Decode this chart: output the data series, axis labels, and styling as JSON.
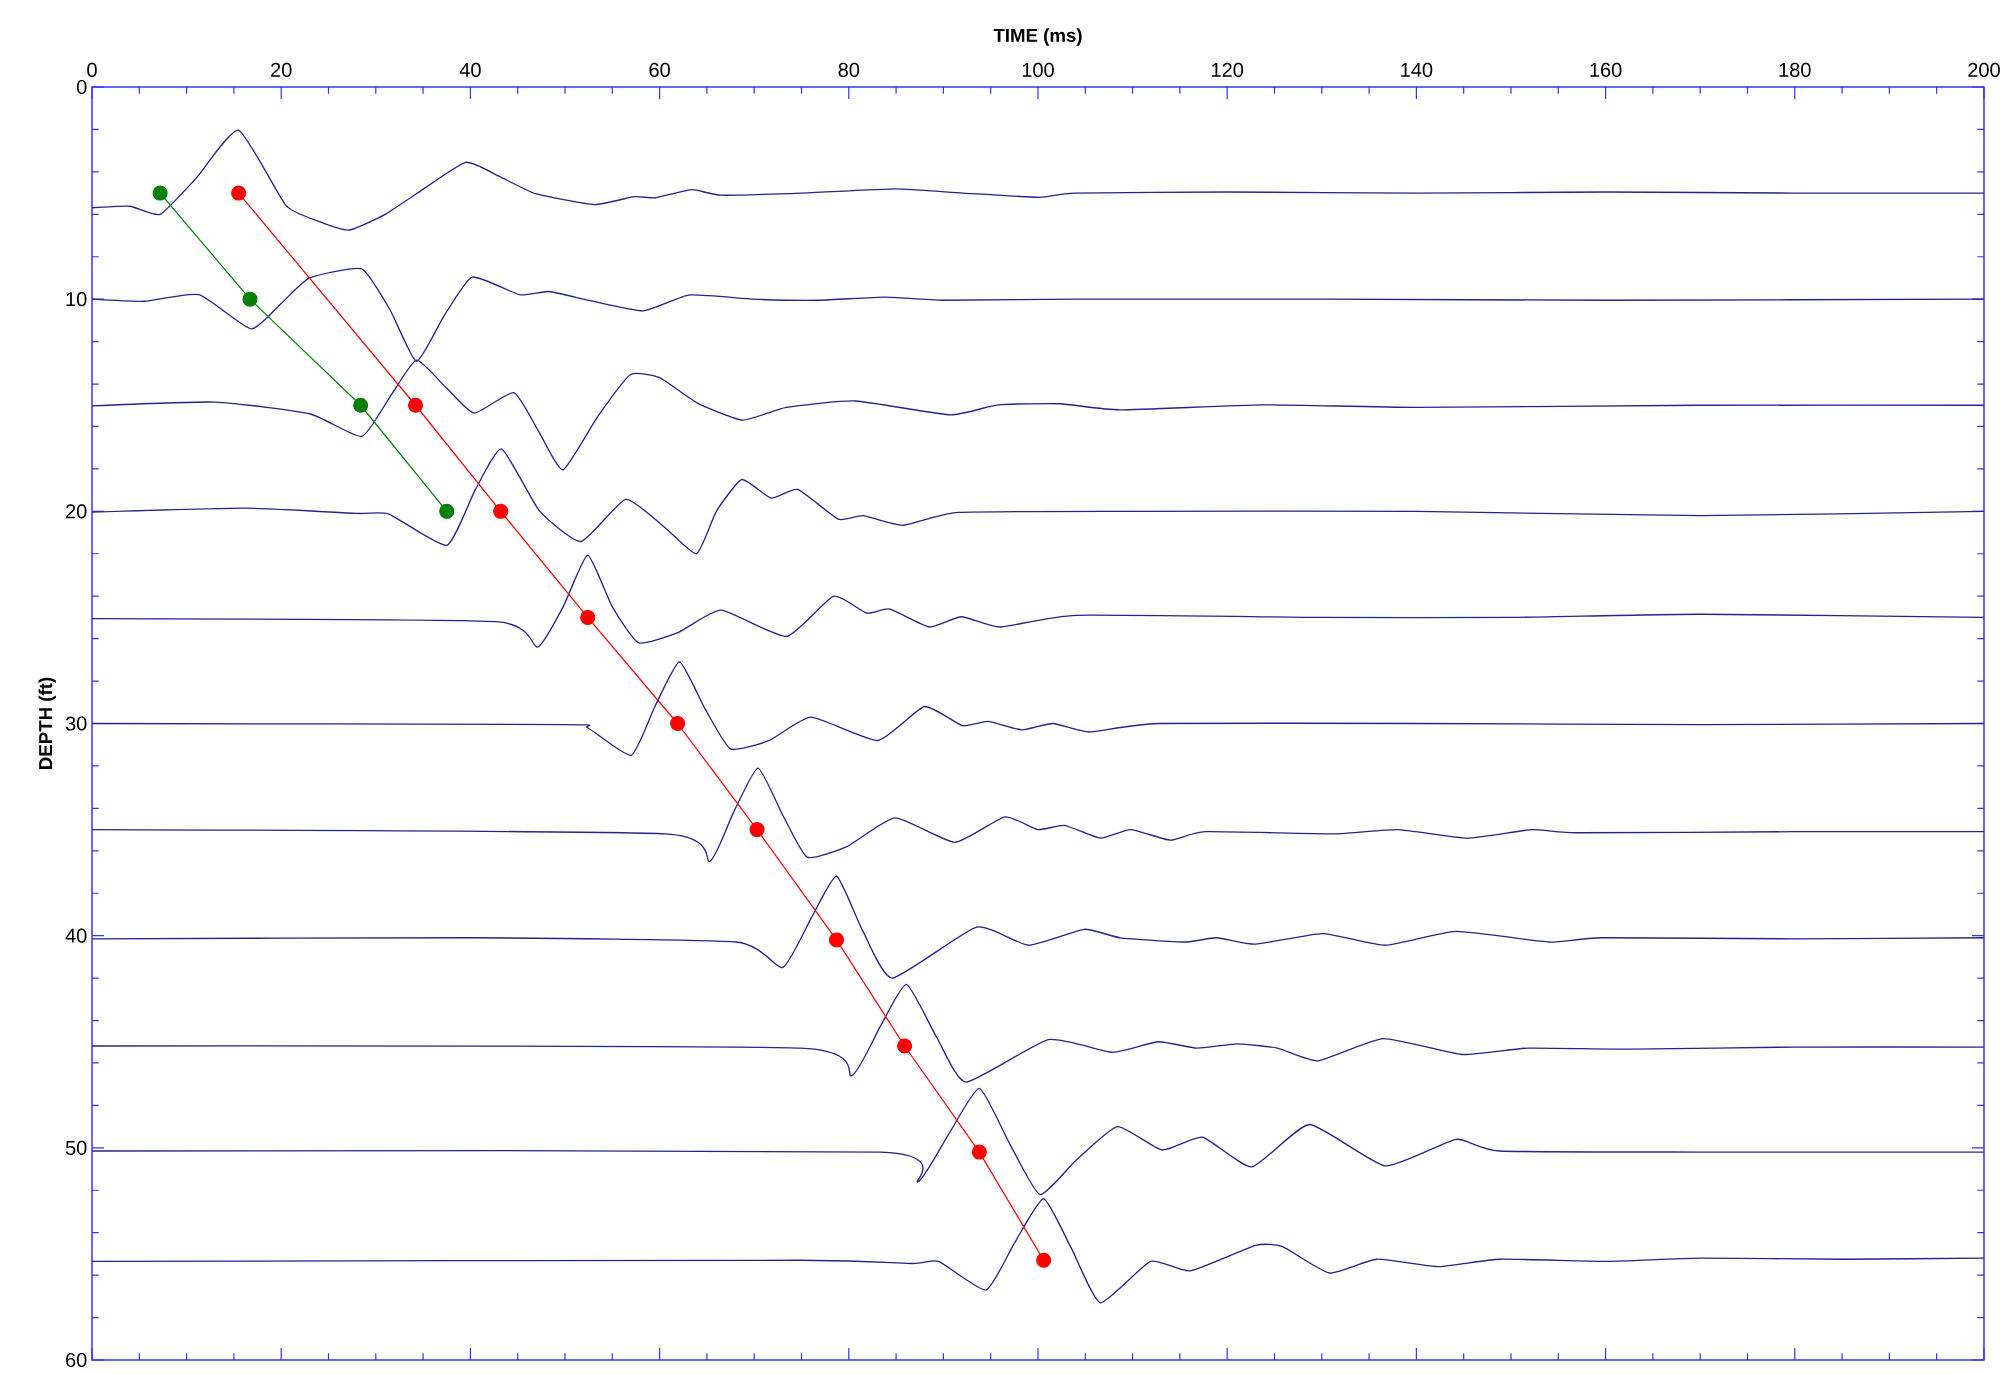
{
  "chart_data": {
    "type": "line",
    "xlabel": "TIME (ms)",
    "ylabel": "DEPTH (ft)",
    "xlim": [
      0,
      200
    ],
    "ylim": [
      60,
      0
    ],
    "xticks": [
      0,
      20,
      40,
      60,
      80,
      100,
      120,
      140,
      160,
      180,
      200
    ],
    "yticks": [
      0,
      10,
      20,
      30,
      40,
      50,
      60
    ],
    "series": [
      {
        "color": "#24248f",
        "marker": "none",
        "x": [
          0,
          4,
          7.2,
          11,
          15.5,
          20.5,
          23.9,
          27.2,
          31,
          34.3,
          39.5,
          43,
          46.9,
          53.1,
          57.3,
          59.6,
          63.4,
          66.5,
          75,
          85,
          92,
          100.1,
          103.9,
          120,
          140,
          160,
          180,
          200
        ],
        "values": [
          5.69,
          5.62,
          6.0,
          4.3,
          2.04,
          5.58,
          6.32,
          6.74,
          6.0,
          5.03,
          3.55,
          4.2,
          5.03,
          5.54,
          5.17,
          5.22,
          4.84,
          5.1,
          5.0,
          4.8,
          5.0,
          5.2,
          5.0,
          4.95,
          5.0,
          4.95,
          5.0,
          5.0
        ]
      },
      {
        "color": "#24248f",
        "marker": "none",
        "x": [
          0,
          5.5,
          11.3,
          16.8,
          20,
          23,
          28.5,
          31.5,
          34.3,
          37.2,
          40.2,
          45.2,
          48.3,
          52.7,
          58.3,
          63.2,
          70,
          76.9,
          83.8,
          90,
          104.4,
          130,
          160,
          200
        ],
        "values": [
          10.0,
          10.1,
          9.79,
          11.4,
          10.2,
          9.0,
          8.57,
          10.5,
          12.93,
          10.8,
          8.96,
          9.79,
          9.64,
          10.07,
          10.55,
          9.8,
          10.0,
          10.05,
          9.9,
          10.05,
          10.0,
          10.0,
          10.05,
          10.0
        ]
      },
      {
        "color": "#24248f",
        "marker": "none",
        "x": [
          0,
          13,
          23,
          28.5,
          31.5,
          34.3,
          37.5,
          40.4,
          44.6,
          47.3,
          49.8,
          53.5,
          56.9,
          60,
          64,
          68.8,
          73.4,
          80.7,
          90.7,
          95.8,
          102.3,
          108.7,
          123.8,
          140,
          170,
          200
        ],
        "values": [
          15.03,
          14.85,
          15.4,
          16.47,
          14.6,
          12.87,
          14.2,
          15.37,
          14.41,
          16.3,
          18.04,
          15.5,
          13.56,
          13.7,
          14.9,
          15.7,
          15.1,
          14.8,
          15.45,
          14.98,
          14.93,
          15.22,
          14.98,
          15.1,
          15.0,
          15.0
        ]
      },
      {
        "color": "#24248f",
        "marker": "none",
        "x": [
          0,
          16.3,
          28,
          31.4,
          37.5,
          40.5,
          43.3,
          47.3,
          51.7,
          56.4,
          60.4,
          63.9,
          66,
          68.7,
          71.8,
          74.6,
          78.9,
          81.5,
          85.7,
          91.6,
          110,
          140,
          170,
          200
        ],
        "values": [
          20.04,
          19.85,
          20.1,
          20.13,
          21.6,
          19.0,
          17.06,
          19.98,
          21.42,
          19.44,
          20.7,
          22.0,
          20.0,
          18.5,
          19.38,
          18.97,
          20.37,
          20.2,
          20.66,
          20.05,
          20.0,
          20.0,
          20.2,
          20.0
        ]
      },
      {
        "color": "#24248f",
        "marker": "none",
        "x": [
          0,
          42.7,
          47.1,
          49.8,
          52.4,
          55,
          57.8,
          62,
          66.5,
          73.4,
          78.4,
          81.9,
          84.3,
          88.5,
          91.9,
          96,
          104.1,
          130,
          150,
          170,
          200
        ],
        "values": [
          25.06,
          25.2,
          26.4,
          24.5,
          22.07,
          24.5,
          26.2,
          25.7,
          24.66,
          25.9,
          24.0,
          24.8,
          24.6,
          25.45,
          24.97,
          25.45,
          24.9,
          25.0,
          25.0,
          24.85,
          25.0
        ]
      },
      {
        "color": "#24248f",
        "marker": "none",
        "x": [
          0,
          50,
          52.4,
          57,
          59.5,
          62.1,
          64.8,
          67.5,
          71.6,
          76,
          83.1,
          88,
          92,
          94.7,
          98.3,
          101.6,
          105.4,
          112.8,
          140,
          170,
          200
        ],
        "values": [
          30.0,
          30.05,
          30.2,
          31.5,
          29.2,
          27.1,
          29.3,
          31.2,
          30.8,
          29.7,
          30.8,
          29.2,
          30.1,
          29.9,
          30.3,
          30.0,
          30.4,
          30.0,
          30.0,
          30.05,
          30.0
        ]
      },
      {
        "color": "#24248f",
        "marker": "none",
        "x": [
          0,
          60.6,
          65.3,
          67.8,
          70.4,
          73,
          75.6,
          79.8,
          84.9,
          91.2,
          96.5,
          100,
          102.8,
          106.6,
          109.8,
          114,
          117.7,
          131.2,
          138,
          145.4,
          152.2,
          156.9,
          180,
          200
        ],
        "values": [
          35.0,
          35.2,
          36.5,
          34.2,
          32.1,
          34.3,
          36.3,
          35.8,
          34.45,
          35.6,
          34.4,
          35.0,
          34.8,
          35.4,
          35.0,
          35.5,
          35.1,
          35.2,
          35.0,
          35.4,
          35.0,
          35.15,
          35.1,
          35.1
        ]
      },
      {
        "color": "#24248f",
        "marker": "none",
        "x": [
          0,
          40,
          68.1,
          73,
          76,
          78.7,
          81.5,
          84.6,
          93.5,
          99,
          104.9,
          108.7,
          115.5,
          118.9,
          123,
          130.1,
          136.7,
          144.2,
          154,
          159.6,
          180,
          200
        ],
        "values": [
          40.15,
          40.1,
          40.3,
          41.5,
          39.2,
          37.2,
          39.8,
          42.0,
          39.6,
          40.45,
          39.7,
          40.1,
          40.3,
          40.1,
          40.4,
          39.9,
          40.45,
          39.8,
          40.3,
          40.1,
          40.15,
          40.1
        ]
      },
      {
        "color": "#24248f",
        "marker": "none",
        "x": [
          0,
          74.9,
          80.3,
          83.3,
          86.1,
          89.3,
          92.4,
          101.1,
          107.9,
          112.7,
          116.8,
          121.1,
          125.3,
          129.6,
          136.5,
          144.8,
          151.8,
          162.8,
          180,
          200
        ],
        "values": [
          45.2,
          45.3,
          46.6,
          44.3,
          42.3,
          44.8,
          46.9,
          44.9,
          45.5,
          45.0,
          45.3,
          45.1,
          45.3,
          45.9,
          44.85,
          45.6,
          45.3,
          45.35,
          45.25,
          45.25
        ]
      },
      {
        "color": "#24248f",
        "marker": "none",
        "x": [
          0,
          83.4,
          87.3,
          90.5,
          93.8,
          97,
          100.2,
          104,
          108.4,
          113.1,
          117.4,
          122.6,
          128.7,
          136.7,
          144.2,
          148.8,
          170,
          200
        ],
        "values": [
          50.15,
          50.2,
          51.6,
          49.4,
          47.2,
          49.8,
          52.2,
          50.6,
          49.0,
          50.1,
          49.5,
          50.9,
          48.9,
          50.85,
          49.6,
          50.15,
          50.2,
          50.2
        ]
      },
      {
        "color": "#24248f",
        "marker": "none",
        "x": [
          0,
          74.9,
          86.7,
          89.5,
          94.5,
          97.5,
          100.6,
          103.6,
          106.6,
          111.9,
          116.1,
          123,
          125.8,
          130.8,
          135.8,
          142.4,
          148.8,
          160,
          170,
          185,
          200
        ],
        "values": [
          55.35,
          55.3,
          55.45,
          55.35,
          56.7,
          54.5,
          52.4,
          54.8,
          57.3,
          55.35,
          55.8,
          54.6,
          54.65,
          55.9,
          55.25,
          55.6,
          55.25,
          55.35,
          55.2,
          55.25,
          55.2
        ]
      },
      {
        "color": "#008000",
        "marker": "circle",
        "x": [
          7.2,
          16.7,
          28.4,
          37.5
        ],
        "values": [
          5,
          10,
          15,
          20
        ]
      },
      {
        "color": "#ff0000",
        "marker": "circle",
        "x": [
          15.5,
          34.2,
          43.2,
          52.4,
          61.9,
          70.3,
          78.7,
          85.9,
          93.8,
          100.6
        ],
        "values": [
          5,
          15,
          20,
          25,
          30,
          35,
          40.2,
          45.2,
          50.2,
          55.3
        ]
      }
    ]
  }
}
